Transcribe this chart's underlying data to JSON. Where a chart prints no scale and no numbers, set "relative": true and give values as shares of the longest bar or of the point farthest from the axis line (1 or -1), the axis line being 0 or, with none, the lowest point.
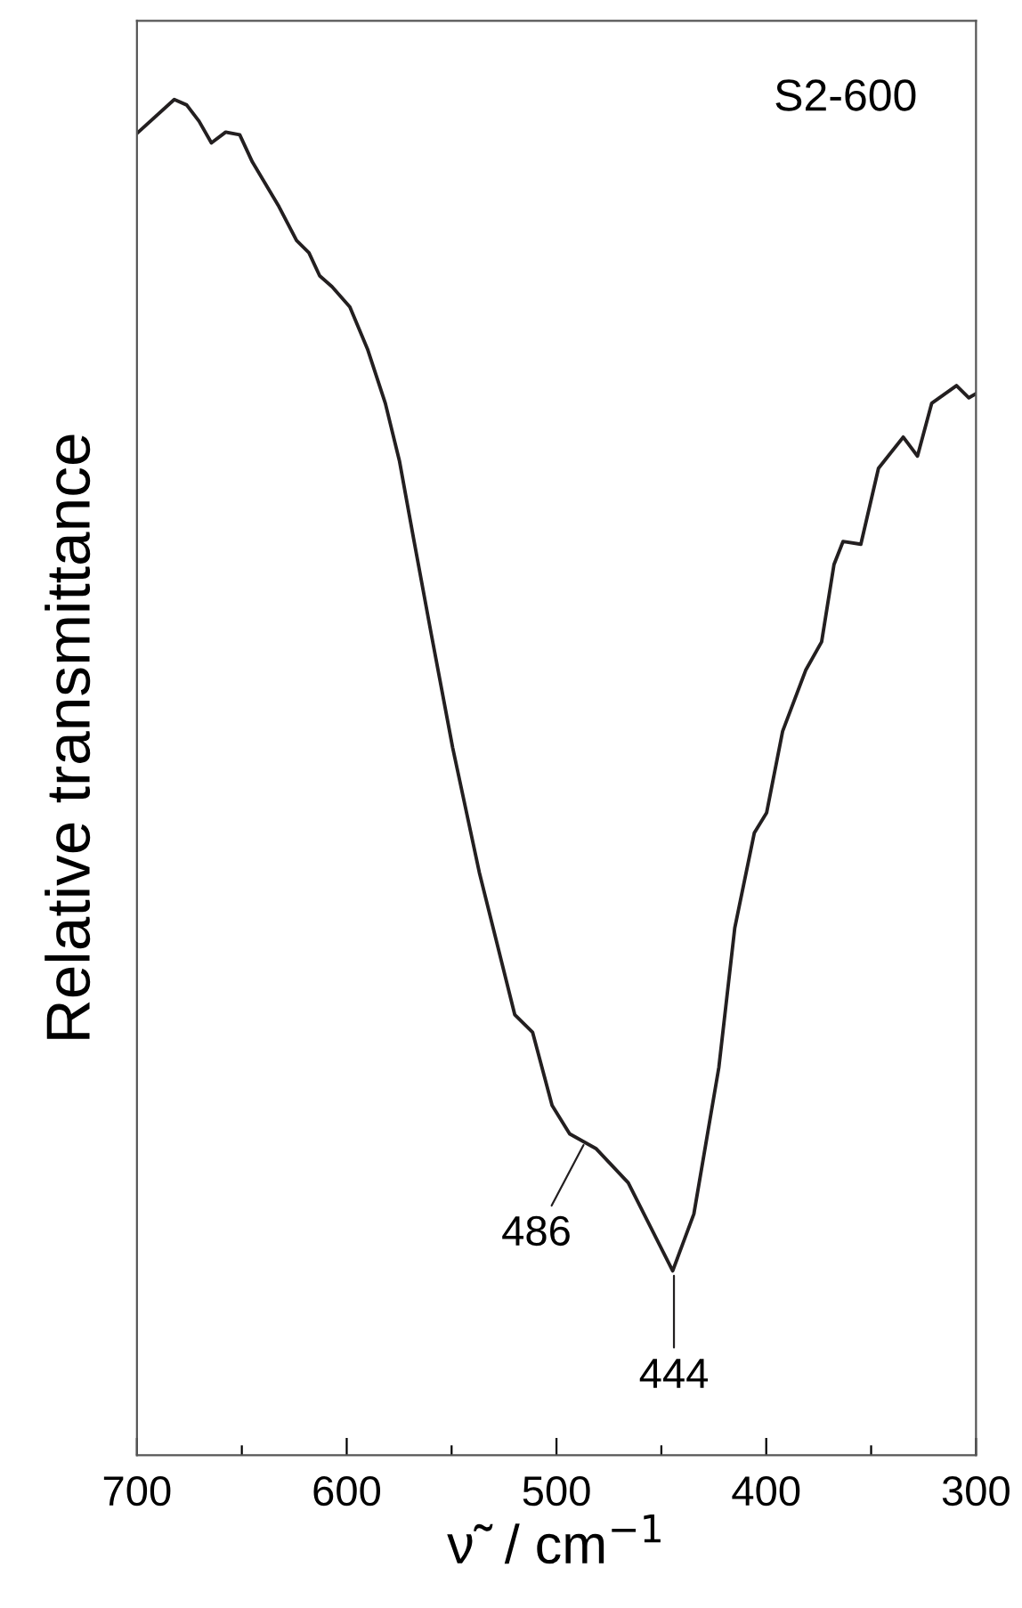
{
  "chart_data": {
    "type": "line",
    "xlabel": "ν̃  / cm$^{−1}$",
    "ylabel": "Relative transmittance",
    "relative": true,
    "xlim": [
      700,
      300
    ],
    "xticks": [
      700,
      {
        "value": 650,
        "label": null
      },
      600,
      {
        "value": 550,
        "label": null
      },
      500,
      {
        "value": 450,
        "label": null
      },
      400,
      {
        "value": 350,
        "label": null
      },
      300
    ],
    "grid": false,
    "legend": false,
    "marker": "none",
    "line_style": "solid",
    "series": [
      {
        "color": "#231f20",
        "x": [
          700,
          682.2,
          676.3,
          670.4,
          664.5,
          657.7,
          651.0,
          645.0,
          632.3,
          623.9,
          618.0,
          612.9,
          607.0,
          598.5,
          590.1,
          581.6,
          574.8,
          568.1,
          559.6,
          549.5,
          536.8,
          519.9,
          511.4,
          502.1,
          493.7,
          481.0,
          465.8,
          444.6,
          434.5,
          422.6,
          415.0,
          405.7,
          399.8,
          392.2,
          381.2,
          373.6,
          367.7,
          363.4,
          354.9,
          346.5,
          334.7,
          327.9,
          321.1,
          309.3,
          303.4,
          300
        ],
        "values": [
          0.975,
          1.0,
          0.996,
          0.984,
          0.968,
          0.976,
          0.974,
          0.954,
          0.921,
          0.896,
          0.887,
          0.87,
          0.862,
          0.847,
          0.816,
          0.776,
          0.733,
          0.676,
          0.605,
          0.522,
          0.43,
          0.325,
          0.312,
          0.258,
          0.237,
          0.226,
          0.201,
          0.136,
          0.178,
          0.286,
          0.389,
          0.459,
          0.474,
          0.534,
          0.579,
          0.6,
          0.657,
          0.674,
          0.672,
          0.728,
          0.751,
          0.737,
          0.776,
          0.789,
          0.78,
          0.783
        ]
      }
    ],
    "annotations": [
      "S2-600",
      {
        "text": "486",
        "x": 486,
        "y": 0.232
      },
      {
        "text": "444",
        "x": 444,
        "y": 0.136
      }
    ]
  }
}
